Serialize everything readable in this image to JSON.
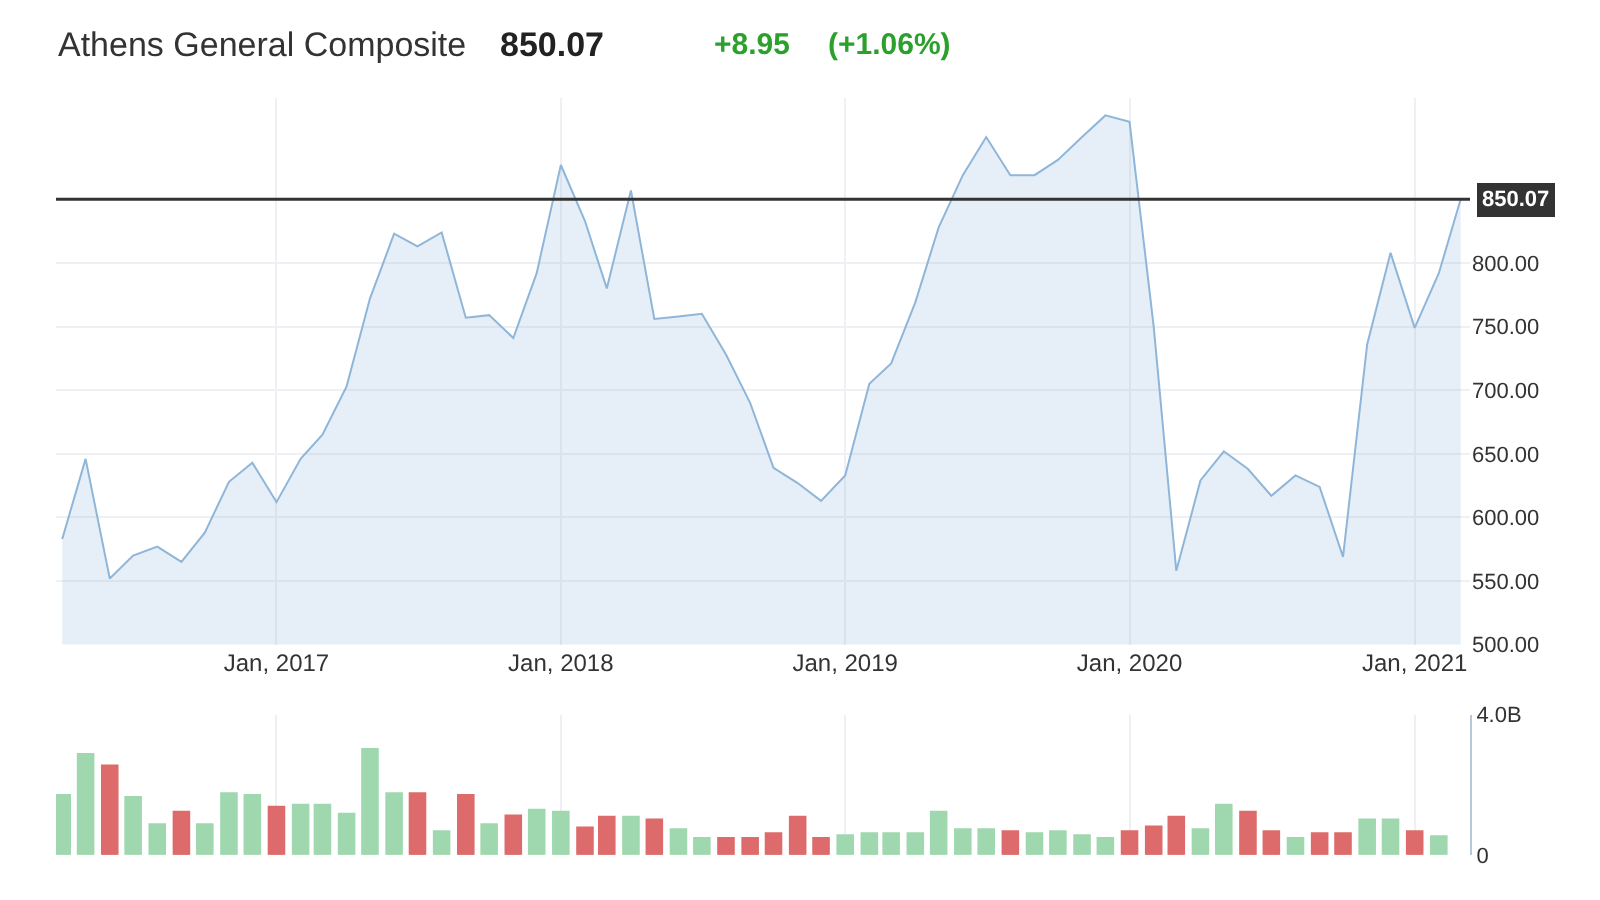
{
  "chart_data": [
    {
      "type": "area",
      "title": "Athens General Composite",
      "annotations": [
        "850.07",
        "+8.95",
        "(+1.06%)"
      ],
      "x": [
        "2016-04",
        "2016-05",
        "2016-06",
        "2016-07",
        "2016-08",
        "2016-09",
        "2016-10",
        "2016-11",
        "2016-12",
        "2017-01",
        "2017-02",
        "2017-03",
        "2017-04",
        "2017-05",
        "2017-06",
        "2017-07",
        "2017-08",
        "2017-09",
        "2017-10",
        "2017-11",
        "2017-12",
        "2018-01",
        "2018-02",
        "2018-03",
        "2018-04",
        "2018-05",
        "2018-06",
        "2018-07",
        "2018-08",
        "2018-09",
        "2018-10",
        "2018-11",
        "2018-12",
        "2019-01",
        "2019-02",
        "2019-03",
        "2019-04",
        "2019-05",
        "2019-06",
        "2019-07",
        "2019-08",
        "2019-09",
        "2019-10",
        "2019-11",
        "2019-12",
        "2020-01",
        "2020-02",
        "2020-03",
        "2020-04",
        "2020-05",
        "2020-06",
        "2020-07",
        "2020-08",
        "2020-09",
        "2020-10",
        "2020-11",
        "2020-12",
        "2021-01",
        "2021-02",
        "2021-03"
      ],
      "series": [
        {
          "color": "#8fb6d9",
          "values": [
            583,
            646,
            552,
            570,
            577,
            565,
            588,
            628,
            643,
            612,
            646,
            665,
            703,
            772,
            823,
            813,
            824,
            757,
            759,
            741,
            792,
            877,
            833,
            780,
            857,
            756,
            758,
            760,
            728,
            690,
            639,
            627,
            613,
            633,
            705,
            721,
            769,
            828,
            869,
            899,
            869,
            869,
            881,
            899,
            916,
            911,
            750,
            558,
            629,
            652,
            638,
            617,
            633,
            624,
            569,
            736,
            808,
            749,
            792,
            850.07
          ]
        }
      ],
      "xlim": [
        "2016-03-24",
        "2021-03-13"
      ],
      "xticks": [
        {
          "value": "2017-01",
          "label": "Jan, 2017"
        },
        {
          "value": "2018-01",
          "label": "Jan, 2018"
        },
        {
          "value": "2019-01",
          "label": "Jan, 2019"
        },
        {
          "value": "2020-01",
          "label": "Jan, 2020"
        },
        {
          "value": "2021-01",
          "label": "Jan, 2021"
        }
      ],
      "ylim": [
        500,
        930
      ],
      "yticks": [
        {
          "value": 500,
          "label": "500.00"
        },
        {
          "value": 550,
          "label": "550.00"
        },
        {
          "value": 600,
          "label": "600.00"
        },
        {
          "value": 650,
          "label": "650.00"
        },
        {
          "value": 700,
          "label": "700.00"
        },
        {
          "value": 750,
          "label": "750.00"
        },
        {
          "value": 800,
          "label": "800.00"
        }
      ],
      "ref_lines": [
        {
          "axis": "y",
          "value": 850.07,
          "label": "850.07",
          "color": "#333333"
        }
      ],
      "grid": true,
      "marker": "none"
    },
    {
      "type": "bar",
      "x": [
        "2016-04",
        "2016-05",
        "2016-06",
        "2016-07",
        "2016-08",
        "2016-09",
        "2016-10",
        "2016-11",
        "2016-12",
        "2017-01",
        "2017-02",
        "2017-03",
        "2017-04",
        "2017-05",
        "2017-06",
        "2017-07",
        "2017-08",
        "2017-09",
        "2017-10",
        "2017-11",
        "2017-12",
        "2018-01",
        "2018-02",
        "2018-03",
        "2018-04",
        "2018-05",
        "2018-06",
        "2018-07",
        "2018-08",
        "2018-09",
        "2018-10",
        "2018-11",
        "2018-12",
        "2019-01",
        "2019-02",
        "2019-03",
        "2019-04",
        "2019-05",
        "2019-06",
        "2019-07",
        "2019-08",
        "2019-09",
        "2019-10",
        "2019-11",
        "2019-12",
        "2020-01",
        "2020-02",
        "2020-03",
        "2020-04",
        "2020-05",
        "2020-06",
        "2020-07",
        "2020-08",
        "2020-09",
        "2020-10",
        "2020-11",
        "2020-12",
        "2021-01",
        "2021-02"
      ],
      "values": [
        1.71,
        2.88,
        2.55,
        1.65,
        0.87,
        1.23,
        0.87,
        1.76,
        1.71,
        1.37,
        1.43,
        1.43,
        1.17,
        3.02,
        1.76,
        1.76,
        0.67,
        1.71,
        0.87,
        1.12,
        1.29,
        1.23,
        0.78,
        1.09,
        1.09,
        1.01,
        0.73,
        0.48,
        0.48,
        0.48,
        0.62,
        1.09,
        0.48,
        0.56,
        0.62,
        0.62,
        0.62,
        1.23,
        0.73,
        0.73,
        0.67,
        0.62,
        0.67,
        0.56,
        0.48,
        0.67,
        0.81,
        1.09,
        0.73,
        1.43,
        1.23,
        0.67,
        0.48,
        0.62,
        0.62,
        1.01,
        1.01,
        0.67,
        0.53
      ],
      "colors": [
        "#9fd8ae",
        "#9fd8ae",
        "#dd6b6b",
        "#9fd8ae",
        "#9fd8ae",
        "#dd6b6b",
        "#9fd8ae",
        "#9fd8ae",
        "#9fd8ae",
        "#dd6b6b",
        "#9fd8ae",
        "#9fd8ae",
        "#9fd8ae",
        "#9fd8ae",
        "#9fd8ae",
        "#dd6b6b",
        "#9fd8ae",
        "#dd6b6b",
        "#9fd8ae",
        "#dd6b6b",
        "#9fd8ae",
        "#9fd8ae",
        "#dd6b6b",
        "#dd6b6b",
        "#9fd8ae",
        "#dd6b6b",
        "#9fd8ae",
        "#9fd8ae",
        "#dd6b6b",
        "#dd6b6b",
        "#dd6b6b",
        "#dd6b6b",
        "#dd6b6b",
        "#9fd8ae",
        "#9fd8ae",
        "#9fd8ae",
        "#9fd8ae",
        "#9fd8ae",
        "#9fd8ae",
        "#9fd8ae",
        "#dd6b6b",
        "#9fd8ae",
        "#9fd8ae",
        "#9fd8ae",
        "#9fd8ae",
        "#dd6b6b",
        "#dd6b6b",
        "#dd6b6b",
        "#9fd8ae",
        "#9fd8ae",
        "#dd6b6b",
        "#dd6b6b",
        "#9fd8ae",
        "#dd6b6b",
        "#dd6b6b",
        "#9fd8ae",
        "#9fd8ae",
        "#dd6b6b",
        "#9fd8ae"
      ],
      "xlim": [
        "2016-03-24",
        "2021-03-13"
      ],
      "ylim": [
        0,
        4.0
      ],
      "yticks": [
        0,
        {
          "value": 4.0,
          "label": "4.0B"
        }
      ],
      "tick_labels": "y",
      "grid": "x"
    }
  ]
}
